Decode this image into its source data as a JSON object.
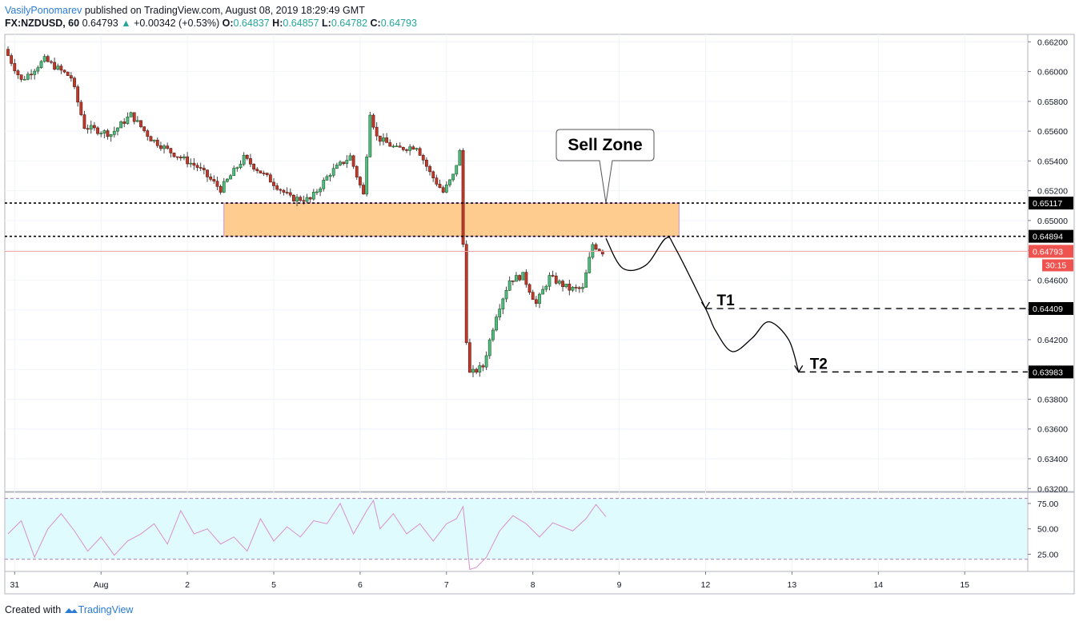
{
  "header": {
    "author": "VasilyPonomarev",
    "published": "published on TradingView.com, August 08, 2019 18:29:49 GMT",
    "symbol": "FX:NZDUSD, 60",
    "last": "0.64793",
    "change": "+0.00342 (+0.53%)",
    "o_label": "O:",
    "o": "0.64837",
    "h_label": "H:",
    "h": "0.64857",
    "l_label": "L:",
    "l": "0.64782",
    "c_label": "C:",
    "c": "0.64793"
  },
  "footer": {
    "created": "Created with",
    "brand": "TradingView"
  },
  "colors": {
    "up": "#26a69a",
    "up_fill": "#53b987",
    "down": "#ef5350",
    "down_fill": "#c0392b",
    "zone": "#ffcc8f",
    "rsi_band": "#e0fbfd",
    "rsi_line": "#d88ecb",
    "axis_tag": "#000000",
    "price_tag": "#ef5350"
  },
  "chart_data": [
    {
      "type": "candlestick",
      "title": "FX:NZDUSD, 60",
      "y_axis_ticks": [
        "0.66200",
        "0.66000",
        "0.65800",
        "0.65600",
        "0.65400",
        "0.65200",
        "0.65000",
        "0.64800",
        "0.64600",
        "0.64400",
        "0.64200",
        "0.64000",
        "0.63800",
        "0.63600",
        "0.63400",
        "0.63200"
      ],
      "ylim": [
        0.6318,
        0.6625
      ],
      "x_axis_ticks": [
        "31",
        "Aug",
        "2",
        "5",
        "6",
        "7",
        "8",
        "9",
        "12",
        "13",
        "14",
        "15"
      ],
      "x_tick_index": [
        2,
        28,
        54,
        80,
        106,
        132,
        158,
        184,
        210,
        236,
        262,
        288
      ],
      "candle_count": 180,
      "anchors": [
        [
          0,
          0.6615
        ],
        [
          5,
          0.6594
        ],
        [
          12,
          0.6608
        ],
        [
          20,
          0.6596
        ],
        [
          24,
          0.6563
        ],
        [
          32,
          0.6558
        ],
        [
          38,
          0.6571
        ],
        [
          44,
          0.6555
        ],
        [
          50,
          0.6546
        ],
        [
          58,
          0.6536
        ],
        [
          65,
          0.6521
        ],
        [
          72,
          0.6542
        ],
        [
          80,
          0.6527
        ],
        [
          86,
          0.6515
        ],
        [
          92,
          0.6514
        ],
        [
          98,
          0.6532
        ],
        [
          104,
          0.6543
        ],
        [
          108,
          0.6517
        ],
        [
          110,
          0.6573
        ],
        [
          112,
          0.6556
        ],
        [
          118,
          0.6548
        ],
        [
          124,
          0.655
        ],
        [
          128,
          0.6532
        ],
        [
          132,
          0.6519
        ],
        [
          135,
          0.653
        ],
        [
          137,
          0.6546
        ],
        [
          139,
          0.6422
        ],
        [
          141,
          0.6398
        ],
        [
          144,
          0.6402
        ],
        [
          148,
          0.6437
        ],
        [
          152,
          0.646
        ],
        [
          156,
          0.6463
        ],
        [
          160,
          0.6444
        ],
        [
          164,
          0.6462
        ],
        [
          170,
          0.6454
        ],
        [
          174,
          0.6454
        ],
        [
          177,
          0.6484
        ],
        [
          180,
          0.6479
        ]
      ],
      "last_price": "0.64793",
      "countdown": "30:15",
      "levels": [
        {
          "price": "0.65117",
          "style": "dotted"
        },
        {
          "price": "0.64894",
          "style": "dotted"
        },
        {
          "price": "0.64409",
          "style": "dashed",
          "label": "T1"
        },
        {
          "price": "0.63983",
          "style": "dashed",
          "label": "T2"
        }
      ],
      "zone": {
        "label": "Sell Zone",
        "top": 0.65117,
        "bottom": 0.64894
      },
      "projection": [
        [
          180,
          0.6488
        ],
        [
          185,
          0.6468
        ],
        [
          192,
          0.647
        ],
        [
          198,
          0.6488
        ],
        [
          201,
          0.6481
        ],
        [
          210,
          0.64409
        ],
        [
          213,
          0.6426
        ],
        [
          218,
          0.6412
        ],
        [
          224,
          0.6421
        ],
        [
          229,
          0.6432
        ],
        [
          235,
          0.642
        ],
        [
          238,
          0.63983
        ]
      ]
    },
    {
      "type": "line",
      "name": "RSI",
      "y_axis_ticks": [
        "75.00",
        "50.00",
        "25.00"
      ],
      "ylim": [
        8,
        86
      ],
      "bands": [
        80,
        20
      ],
      "x": [
        0,
        4,
        8,
        12,
        16,
        20,
        24,
        28,
        32,
        36,
        40,
        44,
        48,
        52,
        56,
        60,
        64,
        68,
        72,
        76,
        80,
        84,
        88,
        92,
        96,
        100,
        104,
        108,
        110,
        112,
        116,
        120,
        124,
        128,
        132,
        135,
        137,
        139,
        141,
        144,
        148,
        152,
        156,
        160,
        164,
        170,
        174,
        177,
        180
      ],
      "values": [
        45,
        58,
        22,
        50,
        65,
        48,
        28,
        42,
        24,
        38,
        45,
        55,
        35,
        68,
        45,
        50,
        35,
        42,
        28,
        60,
        38,
        52,
        42,
        58,
        55,
        75,
        45,
        68,
        78,
        50,
        65,
        45,
        55,
        38,
        55,
        60,
        72,
        10,
        12,
        22,
        48,
        63,
        55,
        42,
        56,
        48,
        60,
        74,
        62
      ]
    }
  ]
}
